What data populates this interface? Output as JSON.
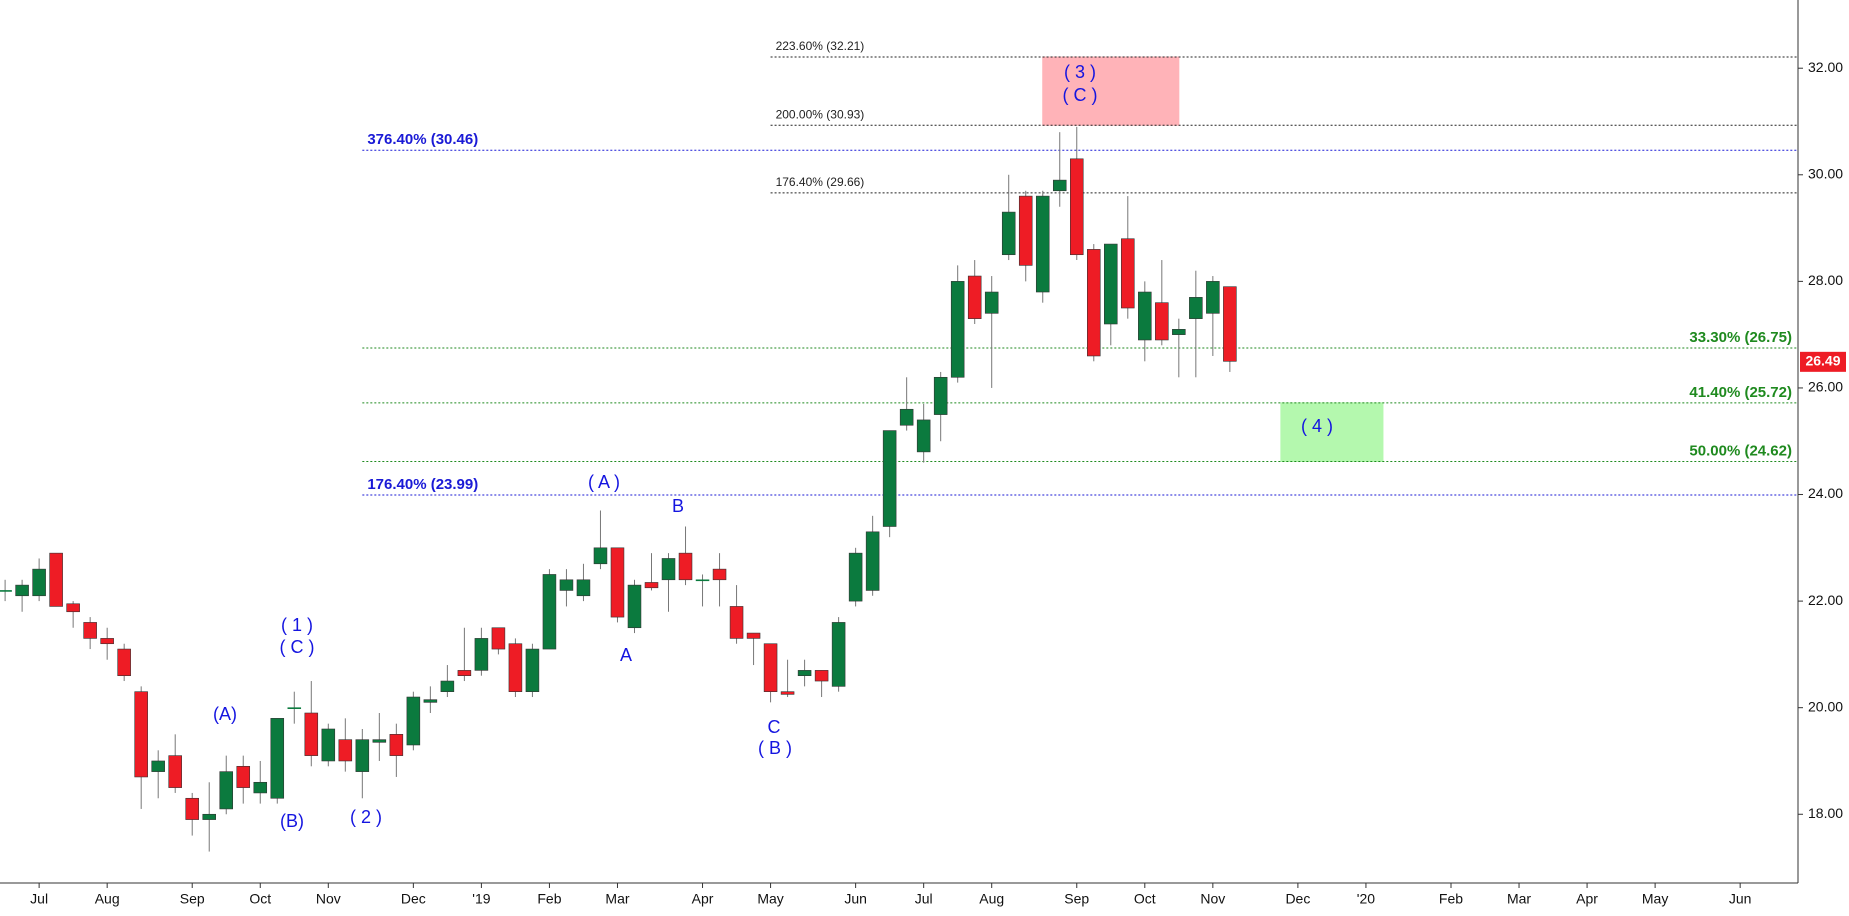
{
  "chart_data": {
    "type": "candlestick",
    "open": [
      22.2,
      22.1,
      22.1,
      22.9,
      21.95,
      21.6,
      21.3,
      21.1,
      20.3,
      18.8,
      19.1,
      18.3,
      17.9,
      18.1,
      18.9,
      18.4,
      18.3,
      20.0,
      19.9,
      19.0,
      19.4,
      18.8,
      19.35,
      19.5,
      19.3,
      20.1,
      20.3,
      20.7,
      20.7,
      21.5,
      21.2,
      20.3,
      21.1,
      22.2,
      22.1,
      22.7,
      23.0,
      21.5,
      22.35,
      22.4,
      22.9,
      22.4,
      22.6,
      21.9,
      21.4,
      21.2,
      20.3,
      20.6,
      20.7,
      20.4,
      22.0,
      22.2,
      23.4,
      25.3,
      24.8,
      25.5,
      26.2,
      28.1,
      27.4,
      28.5,
      29.6,
      27.8,
      29.7,
      30.3,
      28.6,
      27.2,
      28.8,
      26.9,
      27.6,
      27.0,
      27.3,
      27.4,
      27.9
    ],
    "high": [
      22.4,
      22.4,
      22.8,
      22.9,
      22.0,
      21.7,
      21.5,
      21.2,
      20.4,
      19.2,
      19.5,
      18.4,
      18.6,
      19.1,
      19.1,
      19.0,
      19.8,
      20.3,
      20.5,
      19.7,
      19.8,
      19.6,
      19.9,
      19.7,
      20.3,
      20.4,
      20.8,
      21.5,
      21.5,
      21.5,
      21.3,
      21.2,
      22.6,
      22.6,
      22.7,
      23.7,
      23.0,
      22.4,
      22.9,
      22.9,
      23.4,
      22.5,
      22.9,
      22.3,
      21.4,
      21.2,
      20.9,
      20.9,
      20.7,
      21.7,
      23.0,
      23.6,
      25.2,
      26.2,
      25.7,
      26.3,
      28.3,
      28.4,
      28.1,
      30.0,
      29.7,
      29.7,
      30.8,
      30.9,
      28.7,
      28.7,
      29.6,
      28.0,
      28.4,
      27.3,
      28.2,
      28.1,
      27.9
    ],
    "low": [
      22.0,
      21.8,
      22.0,
      21.9,
      21.5,
      21.1,
      20.9,
      20.5,
      18.1,
      18.3,
      18.4,
      17.6,
      17.3,
      18.0,
      18.2,
      18.2,
      18.2,
      19.7,
      18.9,
      18.9,
      18.8,
      18.3,
      19.0,
      18.7,
      19.2,
      19.9,
      20.2,
      20.5,
      20.6,
      21.0,
      20.2,
      20.2,
      21.1,
      21.9,
      22.0,
      22.6,
      21.6,
      21.4,
      22.2,
      21.8,
      22.3,
      21.9,
      21.9,
      21.2,
      20.8,
      20.1,
      20.2,
      20.4,
      20.2,
      20.3,
      21.9,
      22.1,
      23.2,
      25.2,
      24.6,
      25.0,
      26.1,
      27.2,
      26.0,
      28.4,
      28.0,
      27.6,
      29.4,
      28.4,
      26.5,
      26.8,
      27.3,
      26.5,
      26.8,
      26.2,
      26.2,
      26.6,
      26.3
    ],
    "close": [
      22.2,
      22.3,
      22.6,
      21.9,
      21.8,
      21.3,
      21.2,
      20.6,
      18.7,
      19.0,
      18.5,
      17.9,
      18.0,
      18.8,
      18.5,
      18.6,
      19.8,
      20.0,
      19.1,
      19.6,
      19.0,
      19.4,
      19.4,
      19.1,
      20.2,
      20.15,
      20.5,
      20.6,
      21.3,
      21.1,
      20.3,
      21.1,
      22.5,
      22.4,
      22.4,
      23.0,
      21.7,
      22.3,
      22.25,
      22.8,
      22.4,
      22.4,
      22.4,
      21.3,
      21.3,
      20.3,
      20.25,
      20.7,
      20.5,
      21.6,
      22.9,
      23.3,
      25.2,
      25.6,
      25.4,
      26.2,
      28.0,
      27.3,
      27.8,
      29.3,
      28.3,
      29.6,
      29.9,
      28.5,
      26.6,
      28.7,
      27.5,
      27.8,
      26.9,
      27.1,
      27.7,
      28.0,
      26.5
    ],
    "up_color": "#0b7a3e",
    "down_color": "#ee1c25",
    "xlim": [
      -0.3,
      105.4
    ],
    "xticks": [
      {
        "value": 2,
        "label": "Jul"
      },
      {
        "value": 6,
        "label": "Aug"
      },
      {
        "value": 11,
        "label": "Sep"
      },
      {
        "value": 15,
        "label": "Oct"
      },
      {
        "value": 19,
        "label": "Nov"
      },
      {
        "value": 24,
        "label": "Dec"
      },
      {
        "value": 28,
        "label": "'19"
      },
      {
        "value": 32,
        "label": "Feb"
      },
      {
        "value": 36,
        "label": "Mar"
      },
      {
        "value": 41,
        "label": "Apr"
      },
      {
        "value": 45,
        "label": "May"
      },
      {
        "value": 50,
        "label": "Jun"
      },
      {
        "value": 54,
        "label": "Jul"
      },
      {
        "value": 58,
        "label": "Aug"
      },
      {
        "value": 63,
        "label": "Sep"
      },
      {
        "value": 67,
        "label": "Oct"
      },
      {
        "value": 71,
        "label": "Nov"
      },
      {
        "value": 76,
        "label": "Dec"
      },
      {
        "value": 80,
        "label": "'20"
      },
      {
        "value": 85,
        "label": "Feb"
      },
      {
        "value": 89,
        "label": "Mar"
      },
      {
        "value": 93,
        "label": "Apr"
      },
      {
        "value": 97,
        "label": "May"
      },
      {
        "value": 102,
        "label": "Jun"
      }
    ],
    "ylim": [
      16.71,
      33.28
    ],
    "yticks": [
      {
        "value": 18,
        "label": "18.00"
      },
      {
        "value": 20,
        "label": "20.00"
      },
      {
        "value": 22,
        "label": "22.00"
      },
      {
        "value": 24,
        "label": "24.00"
      },
      {
        "value": 26,
        "label": "26.00"
      },
      {
        "value": 28,
        "label": "28.00"
      },
      {
        "value": 30,
        "label": "30.00"
      },
      {
        "value": 32,
        "label": "32.00"
      }
    ],
    "levels": [
      {
        "label": "223.60% (32.21)",
        "value": 32.21,
        "color": "#222222",
        "from": 45,
        "align": "left"
      },
      {
        "label": "200.00% (30.93)",
        "value": 30.93,
        "color": "#222222",
        "from": 45,
        "align": "left"
      },
      {
        "label": "376.40% (30.46)",
        "value": 30.46,
        "color": "#1a1ad6",
        "from": 21,
        "align": "left"
      },
      {
        "label": "176.40% (29.66)",
        "value": 29.66,
        "color": "#222222",
        "from": 45,
        "align": "left"
      },
      {
        "label": "33.30% (26.75)",
        "value": 26.75,
        "color": "#1f8a1f",
        "from": 21,
        "align": "right"
      },
      {
        "label": "41.40% (25.72)",
        "value": 25.72,
        "color": "#1f8a1f",
        "from": 21,
        "align": "right"
      },
      {
        "label": "50.00% (24.62)",
        "value": 24.62,
        "color": "#1f8a1f",
        "from": 21,
        "align": "right"
      },
      {
        "label": "176.40% (23.99)",
        "value": 23.99,
        "color": "#1a1ad6",
        "from": 21,
        "align": "left"
      }
    ],
    "zones": [
      {
        "low": 30.93,
        "high": 32.21,
        "from": 61,
        "to": 69,
        "color": "#ffb3b8"
      },
      {
        "low": 24.62,
        "high": 25.72,
        "from": 75,
        "to": 81,
        "color": "#b4f8ae"
      }
    ],
    "last_price": {
      "value": 26.49,
      "color": "#ee1c25"
    },
    "annotations": [
      "( 3 )",
      "( C )",
      "( 4 )",
      "( A )",
      "B",
      "A",
      "C",
      "( B )",
      "( 1 )",
      "( C )",
      "(A)",
      "(B)",
      "( 2 )"
    ]
  }
}
